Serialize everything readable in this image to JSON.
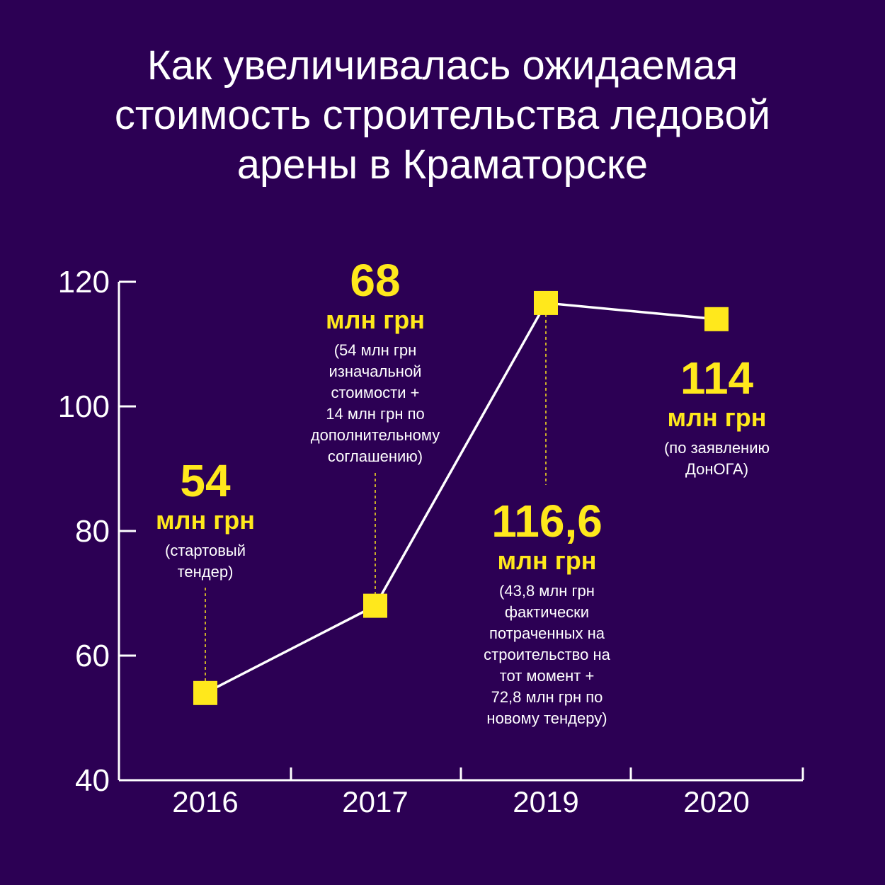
{
  "title_lines": [
    "Как увеличивалась ожидаемая",
    "стоимость строительства ледовой",
    "арены в Краматорске"
  ],
  "colors": {
    "background": "#2c0054",
    "accent": "#ffe81c",
    "axis": "#ffffff",
    "line": "#ffffff"
  },
  "chart_data": {
    "type": "line",
    "categories": [
      "2016",
      "2017",
      "2019",
      "2020"
    ],
    "values": [
      54,
      68,
      116.6,
      114
    ],
    "ylim": [
      40,
      120
    ],
    "yticks": [
      120,
      100,
      80,
      60,
      40
    ],
    "title": "Как увеличивалась ожидаемая стоимость строительства ледовой арены в Краматорске",
    "xlabel": "",
    "ylabel": "",
    "grid": false,
    "annotations": [
      {
        "category": "2016",
        "value_label": "54",
        "unit": "млн грн",
        "note_lines": [
          "(стартовый",
          "тендер)"
        ]
      },
      {
        "category": "2017",
        "value_label": "68",
        "unit": "млн грн",
        "note_lines": [
          "(54 млн грн",
          "изначальной",
          "стоимости +",
          "14 млн грн по",
          "дополнительному",
          "соглашению)"
        ]
      },
      {
        "category": "2019",
        "value_label": "116,6",
        "unit": "млн грн",
        "note_lines": [
          "(43,8 млн грн",
          "фактически",
          "потраченных на",
          "строительство на",
          "тот момент +",
          "72,8 млн грн по",
          "новому тендеру)"
        ]
      },
      {
        "category": "2020",
        "value_label": "114",
        "unit": "млн грн",
        "note_lines": [
          "(по заявлению",
          "ДонОГА)"
        ]
      }
    ]
  }
}
